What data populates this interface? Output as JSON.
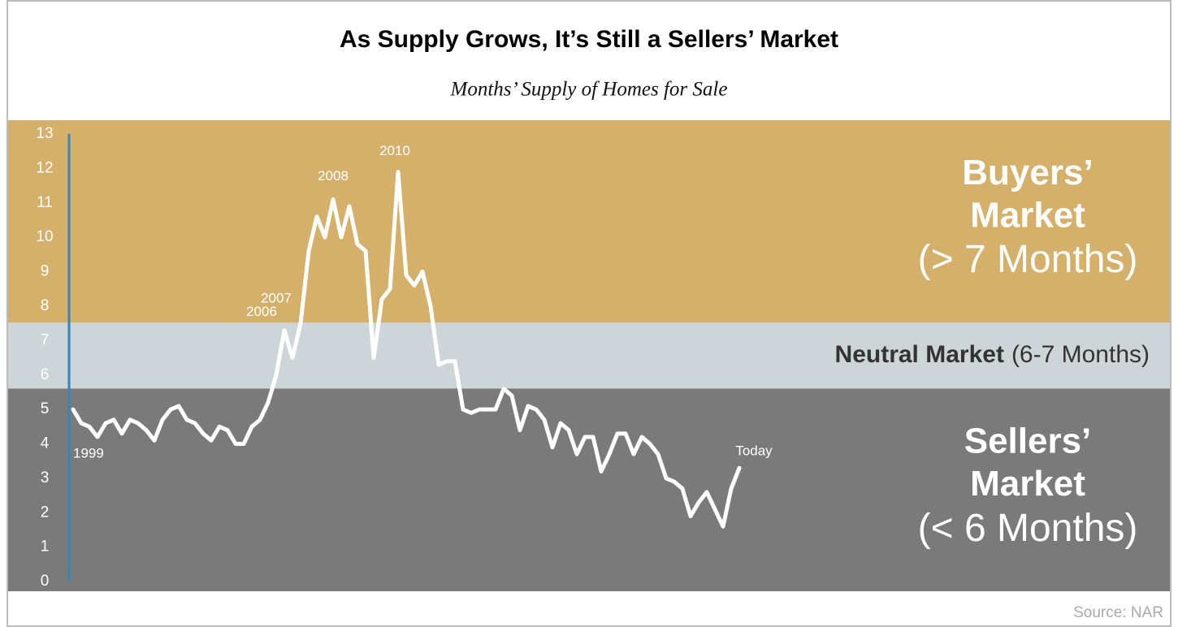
{
  "chart_data": {
    "type": "line",
    "title": "As Supply Grows, It’s Still a Sellers’ Market",
    "subtitle": "Months’ Supply of Homes for Sale",
    "source": "Source: NAR",
    "ylim": [
      -0.28,
      13.4
    ],
    "yticks": [
      0,
      1,
      2,
      3,
      4,
      5,
      6,
      7,
      8,
      9,
      10,
      11,
      12,
      13
    ],
    "grid": false,
    "bands": [
      {
        "lines": [
          "Sellers’",
          "Market",
          "(< 6 Months)"
        ],
        "from": -0.28,
        "to": 5.61,
        "color": "#7a7a7a"
      },
      {
        "lines": [
          "Neutral Market",
          "(6-7 Months)"
        ],
        "from": 5.61,
        "to": 7.52,
        "color": "#cdd5d8"
      },
      {
        "lines": [
          "Buyers’",
          "Market",
          "(> 7 Months)"
        ],
        "from": 7.52,
        "to": 13.4,
        "color": "#d4b06a"
      }
    ],
    "categories": [
      "1999",
      null,
      null,
      null,
      null,
      null,
      null,
      null,
      null,
      null,
      null,
      null,
      null,
      null,
      null,
      null,
      null,
      null,
      null,
      null,
      null,
      null,
      null,
      null,
      null,
      null,
      "2006",
      null,
      "2007",
      null,
      null,
      null,
      "2008",
      null,
      null,
      null,
      null,
      null,
      null,
      null,
      "2010",
      null,
      null,
      null,
      null,
      null,
      null,
      null,
      null,
      null,
      null,
      null,
      null,
      null,
      null,
      null,
      null,
      null,
      null,
      null,
      null,
      null,
      null,
      null,
      null,
      null,
      null,
      null,
      null,
      null,
      null,
      null,
      null,
      null,
      null,
      null,
      null,
      null,
      null,
      null,
      null,
      null,
      "Today"
    ],
    "series": [
      {
        "name": "Months’ Supply",
        "color": "#ffffff",
        "values": [
          5.0,
          4.6,
          4.5,
          4.2,
          4.6,
          4.7,
          4.3,
          4.7,
          4.6,
          4.4,
          4.1,
          4.7,
          5.0,
          5.1,
          4.7,
          4.6,
          4.3,
          4.1,
          4.5,
          4.4,
          4.0,
          4.0,
          4.5,
          4.7,
          5.2,
          6.0,
          7.3,
          6.5,
          7.5,
          9.6,
          10.6,
          10.0,
          11.1,
          10.0,
          10.9,
          9.8,
          9.6,
          6.5,
          8.2,
          8.5,
          11.9,
          8.9,
          8.6,
          9.0,
          8.0,
          6.3,
          6.4,
          6.4,
          5.0,
          4.9,
          5.0,
          5.0,
          5.0,
          5.6,
          5.4,
          4.4,
          5.1,
          5.0,
          4.7,
          3.9,
          4.6,
          4.4,
          3.7,
          4.2,
          4.2,
          3.2,
          3.7,
          4.3,
          4.3,
          3.7,
          4.2,
          4.0,
          3.7,
          3.0,
          2.9,
          2.7,
          1.9,
          2.3,
          2.6,
          2.1,
          1.6,
          2.7,
          3.3
        ]
      }
    ]
  }
}
